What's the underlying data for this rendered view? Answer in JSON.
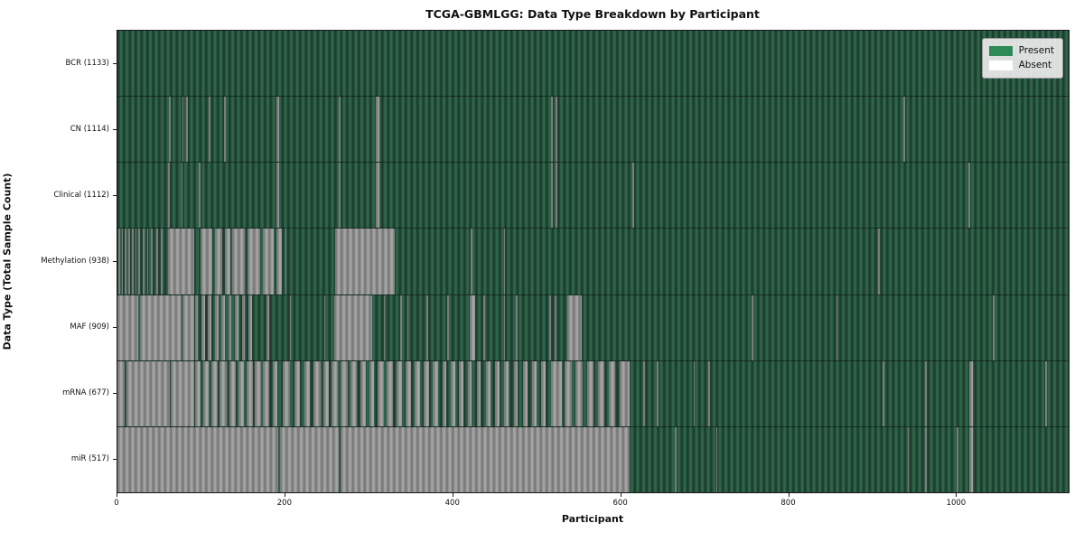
{
  "chart_data": {
    "type": "heatmap",
    "title": "TCGA-GBMLGG: Data Type Breakdown by Participant",
    "xlabel": "Participant",
    "ylabel": "Data Type (Total Sample Count)",
    "x_ticks": [
      0,
      200,
      400,
      600,
      800,
      1000
    ],
    "x_max": 1133,
    "legend_labels": {
      "present": "Present",
      "absent": "Absent"
    },
    "legend_position": "upper right",
    "rows": [
      {
        "label": "BCR (1133)",
        "data_type": "BCR",
        "total": 1133,
        "absent_ranges": []
      },
      {
        "label": "CN (1114)",
        "data_type": "CN",
        "total": 1114,
        "absent_ranges": [
          [
            61,
            63
          ],
          [
            77,
            79
          ],
          [
            82,
            84
          ],
          [
            109,
            111
          ],
          [
            127,
            129
          ],
          [
            189,
            193
          ],
          [
            264,
            266
          ],
          [
            308,
            312
          ],
          [
            517,
            519
          ],
          [
            522,
            524
          ],
          [
            936,
            938
          ]
        ]
      },
      {
        "label": "Clinical (1112)",
        "data_type": "Clinical",
        "total": 1112,
        "absent_ranges": [
          [
            60,
            62
          ],
          [
            76,
            78
          ],
          [
            97,
            99
          ],
          [
            189,
            193
          ],
          [
            264,
            266
          ],
          [
            308,
            312
          ],
          [
            517,
            519
          ],
          [
            522,
            524
          ],
          [
            613,
            615
          ],
          [
            1014,
            1016
          ]
        ]
      },
      {
        "label": "Methylation (938)",
        "data_type": "Methylation",
        "total": 938,
        "absent_ranges": [
          [
            1,
            3
          ],
          [
            5,
            7
          ],
          [
            9,
            11
          ],
          [
            13,
            15
          ],
          [
            17,
            19
          ],
          [
            21,
            23
          ],
          [
            25,
            27
          ],
          [
            30,
            32
          ],
          [
            35,
            37
          ],
          [
            40,
            42
          ],
          [
            46,
            48
          ],
          [
            52,
            54
          ],
          [
            60,
            91
          ],
          [
            99,
            113
          ],
          [
            116,
            125
          ],
          [
            128,
            134
          ],
          [
            137,
            152
          ],
          [
            155,
            170
          ],
          [
            173,
            186
          ],
          [
            189,
            196
          ],
          [
            200,
            201
          ],
          [
            259,
            330
          ],
          [
            421,
            423
          ],
          [
            460,
            462
          ],
          [
            906,
            908
          ]
        ]
      },
      {
        "label": "MAF (909)",
        "data_type": "MAF",
        "total": 909,
        "absent_ranges": [
          [
            0,
            25
          ],
          [
            27,
            76
          ],
          [
            78,
            91
          ],
          [
            92,
            96
          ],
          [
            100,
            104
          ],
          [
            108,
            112
          ],
          [
            116,
            120
          ],
          [
            124,
            128
          ],
          [
            132,
            136
          ],
          [
            140,
            144
          ],
          [
            148,
            152
          ],
          [
            156,
            160
          ],
          [
            178,
            181
          ],
          [
            205,
            207
          ],
          [
            246,
            248
          ],
          [
            258,
            303
          ],
          [
            317,
            319
          ],
          [
            337,
            339
          ],
          [
            345,
            347
          ],
          [
            368,
            370
          ],
          [
            393,
            395
          ],
          [
            420,
            426
          ],
          [
            436,
            438
          ],
          [
            460,
            462
          ],
          [
            475,
            477
          ],
          [
            514,
            517
          ],
          [
            521,
            523
          ],
          [
            536,
            553
          ],
          [
            755,
            757
          ],
          [
            856,
            858
          ],
          [
            1043,
            1045
          ]
        ]
      },
      {
        "label": "mRNA (677)",
        "data_type": "mRNA",
        "total": 677,
        "absent_ranges": [
          [
            0,
            9
          ],
          [
            11,
            62
          ],
          [
            64,
            91
          ],
          [
            92,
            99
          ],
          [
            102,
            109
          ],
          [
            112,
            119
          ],
          [
            122,
            130
          ],
          [
            133,
            141
          ],
          [
            144,
            151
          ],
          [
            154,
            161
          ],
          [
            164,
            171
          ],
          [
            173,
            181
          ],
          [
            185,
            191
          ],
          [
            197,
            205
          ],
          [
            211,
            217
          ],
          [
            223,
            229
          ],
          [
            234,
            242
          ],
          [
            245,
            252
          ],
          [
            255,
            263
          ],
          [
            266,
            274
          ],
          [
            278,
            285
          ],
          [
            289,
            296
          ],
          [
            300,
            306
          ],
          [
            310,
            317
          ],
          [
            321,
            328
          ],
          [
            332,
            339
          ],
          [
            343,
            350
          ],
          [
            354,
            360
          ],
          [
            365,
            371
          ],
          [
            376,
            382
          ],
          [
            387,
            392
          ],
          [
            397,
            402
          ],
          [
            407,
            412
          ],
          [
            417,
            422
          ],
          [
            428,
            433
          ],
          [
            439,
            444
          ],
          [
            450,
            455
          ],
          [
            461,
            466
          ],
          [
            472,
            477
          ],
          [
            483,
            488
          ],
          [
            494,
            499
          ],
          [
            505,
            510
          ],
          [
            516,
            529
          ],
          [
            533,
            541
          ],
          [
            546,
            554
          ],
          [
            559,
            567
          ],
          [
            572,
            580
          ],
          [
            585,
            593
          ],
          [
            598,
            610
          ],
          [
            626,
            628
          ],
          [
            642,
            644
          ],
          [
            686,
            688
          ],
          [
            704,
            706
          ],
          [
            911,
            913
          ],
          [
            962,
            964
          ],
          [
            1015,
            1019
          ],
          [
            1105,
            1107
          ]
        ]
      },
      {
        "label": "miR (517)",
        "data_type": "miR",
        "total": 517,
        "absent_ranges": [
          [
            0,
            192
          ],
          [
            194,
            264
          ],
          [
            266,
            610
          ],
          [
            664,
            666
          ],
          [
            713,
            715
          ],
          [
            941,
            943
          ],
          [
            962,
            964
          ],
          [
            1000,
            1002
          ],
          [
            1015,
            1019
          ]
        ]
      }
    ]
  },
  "colors": {
    "present": "#2e8b57",
    "absent": "#ffffff",
    "present_stripe_dark": "#1e3e2f",
    "present_stripe_light": "#2e664a",
    "absent_stripe_dark": "#7b7b7b",
    "absent_stripe_light": "#a3a3a3",
    "legend_background": "#ececec",
    "axis": "#1a1a1a",
    "figure_background": "#ffffff"
  }
}
